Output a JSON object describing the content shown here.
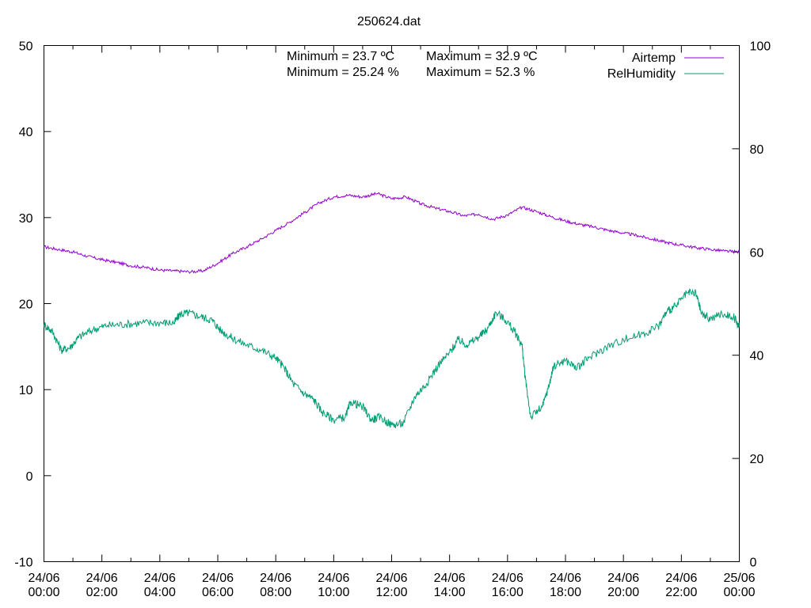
{
  "chart_data": {
    "type": "line",
    "title": "250624.dat",
    "stats": {
      "temp_min": "Minimum = 23.7 ºC",
      "temp_max": "Maximum = 32.9 ºC",
      "hum_min": "Minimum = 25.24 %",
      "hum_max": "Maximum = 52.3 %"
    },
    "y_left": {
      "range": [
        -10,
        50
      ],
      "ticks": [
        "-10",
        "0",
        "10",
        "20",
        "30",
        "40",
        "50"
      ]
    },
    "y_right": {
      "range": [
        0,
        100
      ],
      "ticks": [
        "0",
        "20",
        "40",
        "60",
        "80",
        "100"
      ]
    },
    "x_range_hours": [
      0,
      24
    ],
    "x_ticks": [
      {
        "day": "24/06",
        "time": "00:00"
      },
      {
        "day": "24/06",
        "time": "02:00"
      },
      {
        "day": "24/06",
        "time": "04:00"
      },
      {
        "day": "24/06",
        "time": "06:00"
      },
      {
        "day": "24/06",
        "time": "08:00"
      },
      {
        "day": "24/06",
        "time": "10:00"
      },
      {
        "day": "24/06",
        "time": "12:00"
      },
      {
        "day": "24/06",
        "time": "14:00"
      },
      {
        "day": "24/06",
        "time": "16:00"
      },
      {
        "day": "24/06",
        "time": "18:00"
      },
      {
        "day": "24/06",
        "time": "20:00"
      },
      {
        "day": "24/06",
        "time": "22:00"
      },
      {
        "day": "25/06",
        "time": "00:00"
      }
    ],
    "legend_position": "top-right",
    "series": [
      {
        "name": "Airtemp",
        "axis": "left",
        "color": "#9400d3",
        "points": [
          [
            0,
            26.6
          ],
          [
            0.5,
            26.3
          ],
          [
            1,
            26.0
          ],
          [
            1.5,
            25.5
          ],
          [
            2,
            25.1
          ],
          [
            2.5,
            24.8
          ],
          [
            3,
            24.4
          ],
          [
            3.5,
            24.2
          ],
          [
            4,
            23.9
          ],
          [
            4.5,
            23.8
          ],
          [
            5,
            23.7
          ],
          [
            5.5,
            23.8
          ],
          [
            6,
            24.7
          ],
          [
            6.5,
            25.8
          ],
          [
            7,
            26.6
          ],
          [
            7.5,
            27.5
          ],
          [
            8,
            28.5
          ],
          [
            8.5,
            29.5
          ],
          [
            9,
            30.6
          ],
          [
            9.5,
            31.7
          ],
          [
            10,
            32.4
          ],
          [
            10.5,
            32.6
          ],
          [
            11,
            32.4
          ],
          [
            11.5,
            32.8
          ],
          [
            12,
            32.2
          ],
          [
            12.5,
            32.4
          ],
          [
            13,
            31.6
          ],
          [
            13.5,
            31.1
          ],
          [
            14,
            30.7
          ],
          [
            14.5,
            30.2
          ],
          [
            15,
            30.4
          ],
          [
            15.5,
            29.8
          ],
          [
            16,
            30.3
          ],
          [
            16.5,
            31.2
          ],
          [
            17,
            30.7
          ],
          [
            17.5,
            30.1
          ],
          [
            18,
            29.6
          ],
          [
            18.5,
            29.2
          ],
          [
            19,
            28.9
          ],
          [
            19.5,
            28.5
          ],
          [
            20,
            28.2
          ],
          [
            20.5,
            27.9
          ],
          [
            21,
            27.5
          ],
          [
            21.5,
            27.1
          ],
          [
            22,
            26.8
          ],
          [
            22.5,
            26.5
          ],
          [
            23,
            26.3
          ],
          [
            23.5,
            26.1
          ],
          [
            24,
            26.0
          ]
        ]
      },
      {
        "name": "RelHumidity",
        "axis": "right",
        "color": "#009e73",
        "points": [
          [
            0,
            46
          ],
          [
            0.3,
            44.5
          ],
          [
            0.6,
            41
          ],
          [
            0.9,
            41.5
          ],
          [
            1.2,
            43.5
          ],
          [
            1.7,
            45
          ],
          [
            2.2,
            45.8
          ],
          [
            2.8,
            46
          ],
          [
            3.4,
            46.3
          ],
          [
            4,
            46.3
          ],
          [
            4.5,
            46.3
          ],
          [
            4.7,
            48
          ],
          [
            5,
            48.2
          ],
          [
            5.4,
            47.5
          ],
          [
            5.8,
            46.8
          ],
          [
            6.1,
            44.8
          ],
          [
            6.5,
            43.3
          ],
          [
            7,
            42
          ],
          [
            7.5,
            41
          ],
          [
            8,
            39.5
          ],
          [
            8.3,
            37.5
          ],
          [
            8.6,
            34.5
          ],
          [
            9,
            32.5
          ],
          [
            9.3,
            31.5
          ],
          [
            9.6,
            29
          ],
          [
            10,
            27.5
          ],
          [
            10.4,
            28
          ],
          [
            10.6,
            31
          ],
          [
            11,
            30
          ],
          [
            11.3,
            27.5
          ],
          [
            11.6,
            28
          ],
          [
            12,
            26.5
          ],
          [
            12.4,
            26.8
          ],
          [
            12.8,
            32
          ],
          [
            13.2,
            34.5
          ],
          [
            13.6,
            38
          ],
          [
            14,
            40.5
          ],
          [
            14.3,
            43
          ],
          [
            14.6,
            42
          ],
          [
            15,
            43.5
          ],
          [
            15.3,
            45
          ],
          [
            15.6,
            48.3
          ],
          [
            16,
            46.5
          ],
          [
            16.3,
            44
          ],
          [
            16.5,
            42
          ],
          [
            16.6,
            36
          ],
          [
            16.8,
            28
          ],
          [
            17.2,
            30
          ],
          [
            17.4,
            33.5
          ],
          [
            17.6,
            38
          ],
          [
            18,
            39
          ],
          [
            18.4,
            37.5
          ],
          [
            18.8,
            39.5
          ],
          [
            19.4,
            41.5
          ],
          [
            20,
            43
          ],
          [
            20.6,
            44
          ],
          [
            21.2,
            45.5
          ],
          [
            21.5,
            48.5
          ],
          [
            21.8,
            49.5
          ],
          [
            22.2,
            52
          ],
          [
            22.5,
            52
          ],
          [
            22.7,
            48
          ],
          [
            23,
            47
          ],
          [
            23.4,
            48
          ],
          [
            23.8,
            47.5
          ],
          [
            24,
            45.5
          ]
        ]
      }
    ]
  }
}
